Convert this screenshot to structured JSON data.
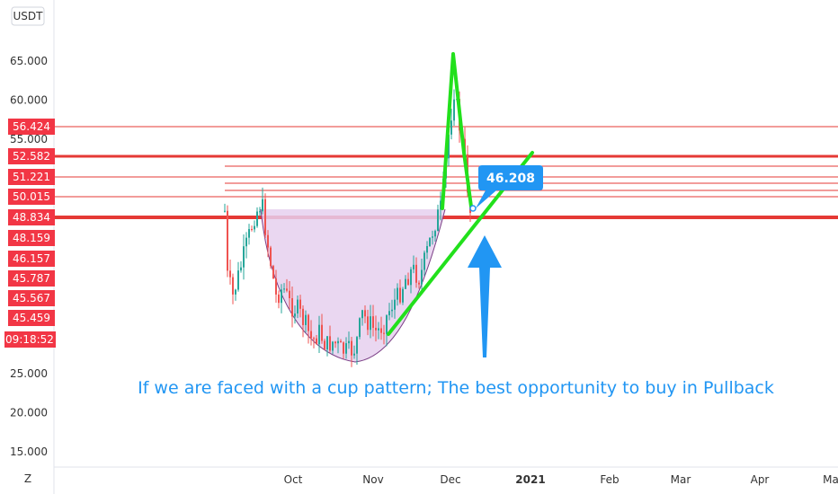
{
  "chart_data": {
    "type": "candlestick",
    "currency_label": "USDT",
    "y_ticks": [
      "65.000",
      "60.000",
      "55.000",
      "25.000",
      "20.000",
      "15.000"
    ],
    "x_ticks": [
      "Oct",
      "Nov",
      "Dec",
      "2021",
      "Feb",
      "Mar",
      "Apr",
      "Ma"
    ],
    "zoom_label": "Z",
    "price_tags": [
      {
        "label": "56.424",
        "value": 56.424
      },
      {
        "label": "52.582",
        "value": 52.582
      },
      {
        "label": "51.221",
        "value": 51.221
      },
      {
        "label": "50.015",
        "value": 50.015
      },
      {
        "label": "48.834",
        "value": 48.834
      },
      {
        "label": "48.159",
        "value": 48.159
      },
      {
        "label": "46.157",
        "value": 46.157
      },
      {
        "label": "45.787",
        "value": 45.787
      },
      {
        "label": "45.567",
        "value": 45.567
      },
      {
        "label": "45.459",
        "value": 45.459
      }
    ],
    "countdown": "09:18:52",
    "callout_value": "46.208",
    "annotation": "If we are faced with a cup pattern; The best opportunity to buy in Pullback",
    "colors": {
      "up": "#26a69a",
      "down": "#ef5350",
      "level_line": "#e53935",
      "pattern_stroke": "#22e01c",
      "cup_fill": "#e6d0ee",
      "callout": "#2196f3",
      "annotation_text": "#2196f3",
      "tag_bg": "#f23645"
    }
  }
}
